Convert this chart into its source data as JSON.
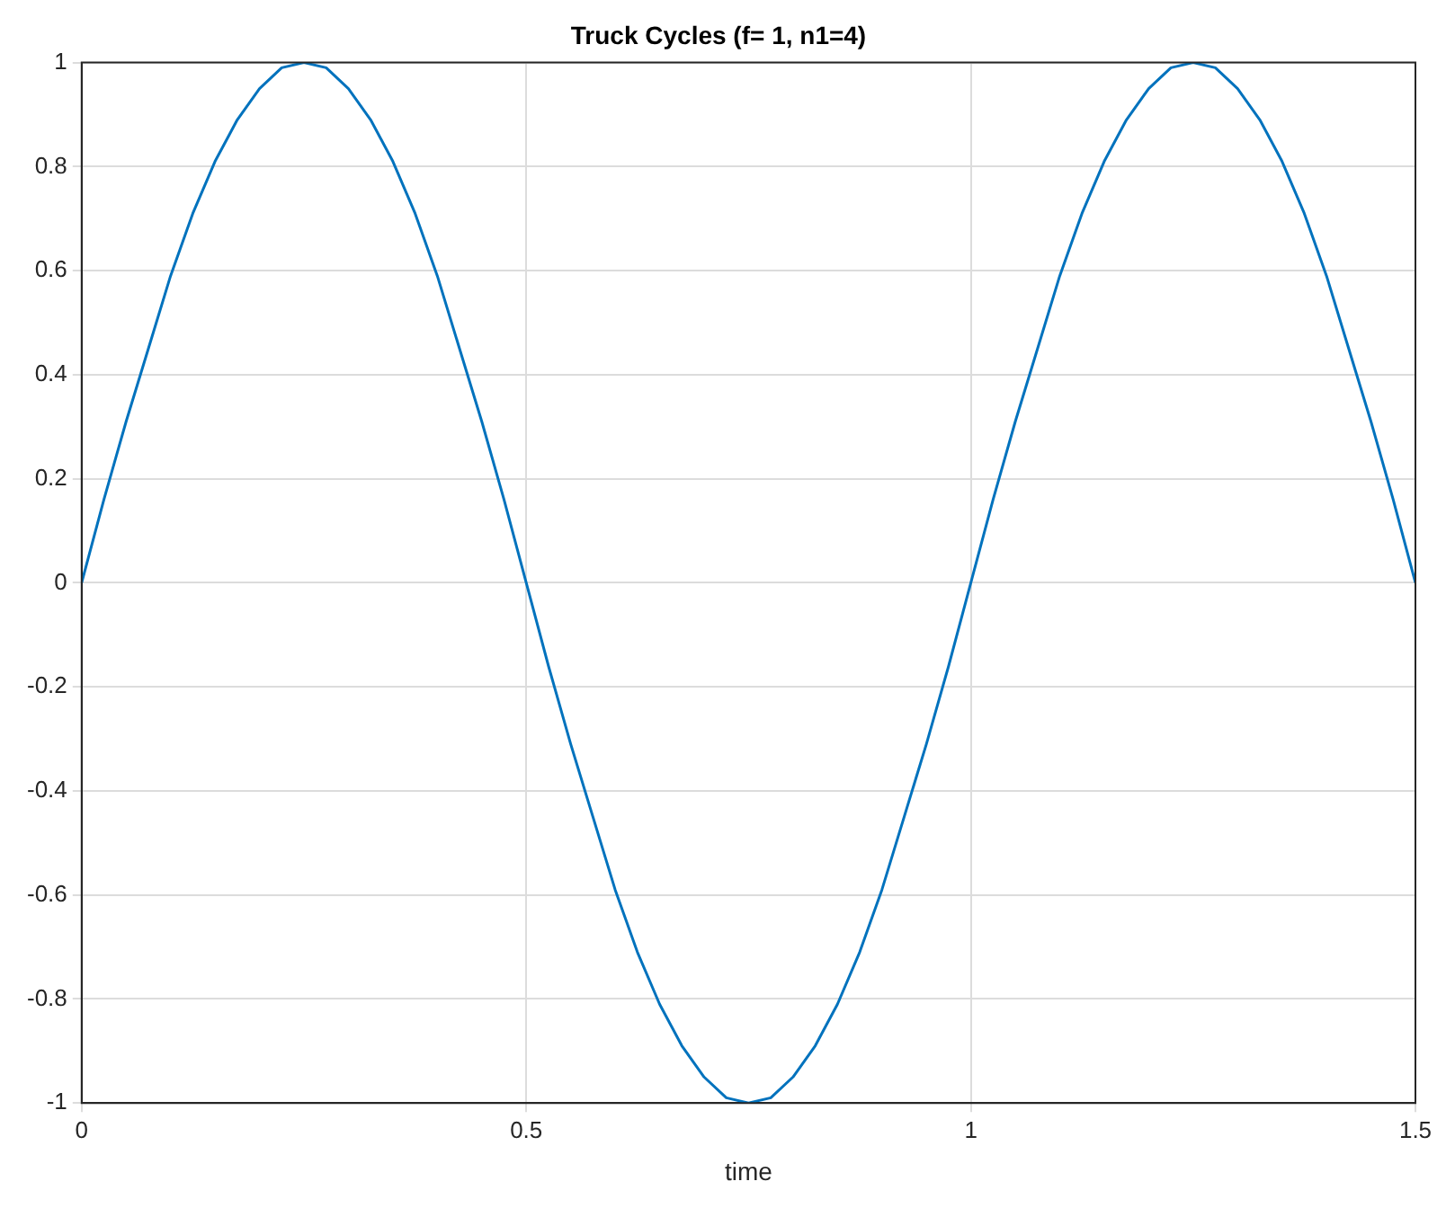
{
  "chart_data": {
    "type": "line",
    "title": "Truck Cycles (f= 1, n1=4)",
    "xlabel": "time",
    "x": [
      0,
      0.025,
      0.05,
      0.075,
      0.1,
      0.125,
      0.15,
      0.175,
      0.2,
      0.225,
      0.25,
      0.275,
      0.3,
      0.325,
      0.35,
      0.375,
      0.4,
      0.425,
      0.45,
      0.475,
      0.5,
      0.525,
      0.55,
      0.575,
      0.6,
      0.625,
      0.65,
      0.675,
      0.7,
      0.725,
      0.75,
      0.775,
      0.8,
      0.825,
      0.85,
      0.875,
      0.9,
      0.925,
      0.95,
      0.975,
      1,
      1.025,
      1.05,
      1.075,
      1.1,
      1.125,
      1.15,
      1.175,
      1.2,
      1.225,
      1.25,
      1.275,
      1.3,
      1.325,
      1.35,
      1.375,
      1.4,
      1.425,
      1.45,
      1.475,
      1.5
    ],
    "series": [
      {
        "color": "#0072bd",
        "values": [
          0,
          0.16,
          0.31,
          0.45,
          0.59,
          0.71,
          0.81,
          0.89,
          0.95,
          0.99,
          1,
          0.99,
          0.95,
          0.89,
          0.81,
          0.71,
          0.59,
          0.45,
          0.31,
          0.16,
          0,
          -0.16,
          -0.31,
          -0.45,
          -0.59,
          -0.71,
          -0.81,
          -0.89,
          -0.95,
          -0.99,
          -1,
          -0.99,
          -0.95,
          -0.89,
          -0.81,
          -0.71,
          -0.59,
          -0.45,
          -0.31,
          -0.16,
          0,
          0.16,
          0.31,
          0.45,
          0.59,
          0.71,
          0.81,
          0.89,
          0.95,
          0.99,
          1,
          0.99,
          0.95,
          0.89,
          0.81,
          0.71,
          0.59,
          0.45,
          0.31,
          0.16,
          0
        ]
      }
    ],
    "xlim": [
      0,
      1.5
    ],
    "xticks": [
      0,
      0.5,
      1,
      1.5
    ],
    "ylim": [
      -1,
      1
    ],
    "yticks": [
      -1,
      -0.8,
      -0.6,
      -0.4,
      -0.2,
      0,
      0.2,
      0.4,
      0.6,
      0.8,
      1
    ],
    "grid": true,
    "legend": false,
    "marker": "none",
    "line_style": "solid"
  }
}
